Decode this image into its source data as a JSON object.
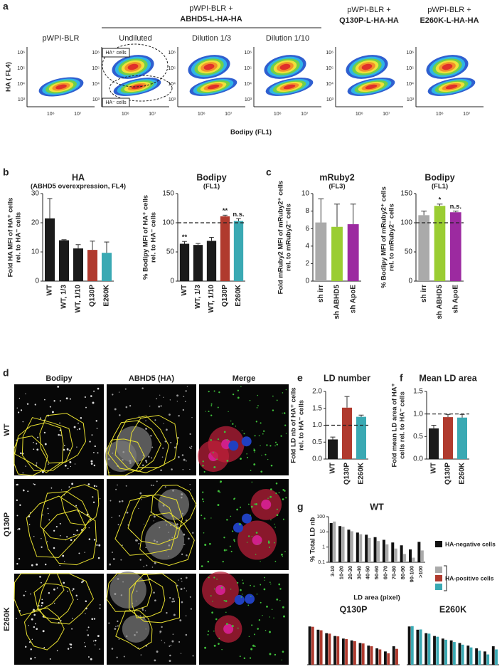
{
  "panel_a": {
    "label": "a",
    "groups": [
      {
        "line1": "pWPI-BLR +",
        "line2": "ABHD5-L-HA-HA"
      },
      {
        "line1": "pWPI-BLR +",
        "line2": "Q130P-L-HA-HA"
      },
      {
        "line1": "pWPI-BLR +",
        "line2": "E260K-L-HA-HA"
      }
    ],
    "plot_titles": [
      "pWPI-BLR",
      "Undiluted",
      "Dilution 1/3",
      "Dilution 1/10"
    ],
    "y_label": "HA ( FL4)",
    "x_label": "Bodipy (FL1)",
    "yticks": [
      "10⁶",
      "10⁵",
      "10⁴",
      "10³"
    ],
    "xticks": [
      "10⁶",
      "10⁷"
    ],
    "gates": [
      "HA⁺ cells",
      "HA⁻ cells"
    ]
  },
  "panel_d": {
    "label": "d",
    "columns": [
      "Bodipy",
      "ABHD5 (HA)",
      "Merge"
    ],
    "rows": [
      "WT",
      "Q130P",
      "E260K"
    ]
  },
  "chart_data": [
    {
      "panel": "b",
      "type": "bar",
      "title": "HA",
      "subtitle": "(ABHD5 overexpression, FL4)",
      "y_label": [
        "Fold HA MFI of HA⁺ cells",
        "rel. to HA⁻ cells"
      ],
      "categories": [
        "WT",
        "WT, 1/3",
        "WT, 1/10",
        "Q130P",
        "E260K"
      ],
      "values": [
        21.5,
        14,
        11.2,
        10.7,
        9.7
      ],
      "errors": [
        6.8,
        0.2,
        1.3,
        3,
        3.7
      ],
      "colors": [
        "#1a1a1a",
        "#1a1a1a",
        "#1a1a1a",
        "#b03a2e",
        "#3aa9b3"
      ],
      "ylim": [
        0,
        30
      ],
      "yticks": [
        0,
        10,
        20,
        30
      ]
    },
    {
      "type": "bar",
      "title": "Bodipy",
      "subtitle": "(FL1)",
      "y_label": [
        "% Bodipy MFI of HA⁺ cells",
        "rel. to HA⁻ cells"
      ],
      "categories": [
        "WT",
        "WT, 1/3",
        "WT, 1/10",
        "Q130P",
        "E260K"
      ],
      "values": [
        64,
        62,
        69,
        111,
        103
      ],
      "errors": [
        4,
        2.5,
        6,
        2,
        4
      ],
      "colors": [
        "#1a1a1a",
        "#1a1a1a",
        "#1a1a1a",
        "#b03a2e",
        "#3aa9b3"
      ],
      "ylim": [
        0,
        150
      ],
      "yticks": [
        0,
        50,
        100,
        150
      ],
      "reference_line": 100,
      "annotations": [
        {
          "category": "WT",
          "text": "**"
        },
        {
          "category": "Q130P",
          "text": "**"
        },
        {
          "category": "E260K",
          "text": "n.s."
        }
      ]
    },
    {
      "panel": "c",
      "type": "bar",
      "title": "mRuby2",
      "subtitle": "(FL3)",
      "y_label": [
        "Fold mRuby2 MFI of mRuby2⁺ cells",
        "rel. to mRuby2⁻ cells"
      ],
      "categories": [
        "sh irr",
        "sh ABHD5",
        "sh ApoE"
      ],
      "values": [
        6.7,
        6.2,
        6.5
      ],
      "errors": [
        2.7,
        2.6,
        2.3
      ],
      "colors": [
        "#aaaaaa",
        "#9acd32",
        "#9c2aa0"
      ],
      "ylim": [
        0,
        10
      ],
      "yticks": [
        0,
        2,
        4,
        6,
        8,
        10
      ]
    },
    {
      "type": "bar",
      "title": "Bodipy",
      "subtitle": "(FL1)",
      "y_label": [
        "% Bodipy MFI of  mRuby2⁺ cells",
        "rel. to mRuby2⁻ cells"
      ],
      "categories": [
        "sh irr",
        "sh ABHD5",
        "sh ApoE"
      ],
      "values": [
        113,
        129,
        118
      ],
      "errors": [
        7,
        3,
        2
      ],
      "colors": [
        "#aaaaaa",
        "#9acd32",
        "#9c2aa0"
      ],
      "ylim": [
        0,
        150
      ],
      "yticks": [
        0,
        50,
        100,
        150
      ],
      "reference_line": 100,
      "annotations": [
        {
          "category": "sh ABHD5",
          "text": "*"
        },
        {
          "category": "sh ApoE",
          "text": "n.s."
        }
      ]
    },
    {
      "panel": "e",
      "type": "bar",
      "title": "LD number",
      "y_label": [
        "Fold LD nb of HA⁺ cells",
        "rel. to HA⁻ cells"
      ],
      "categories": [
        "WT",
        "Q130P",
        "E260K"
      ],
      "values": [
        0.58,
        1.52,
        1.25
      ],
      "errors": [
        0.07,
        0.33,
        0.05
      ],
      "colors": [
        "#1a1a1a",
        "#b03a2e",
        "#3aa9b3"
      ],
      "ylim": [
        0,
        2
      ],
      "yticks": [
        {
          "value": 0,
          "label": "0.0"
        },
        0.5,
        {
          "value": 1,
          "label": "1.0"
        },
        1.5,
        {
          "value": 2,
          "label": "2.0"
        }
      ],
      "reference_line": 1
    },
    {
      "panel": "f",
      "type": "bar",
      "title": "Mean LD area",
      "y_label": [
        "Fold mean LD area of HA⁺",
        "cells rel. to HA⁻ cells"
      ],
      "categories": [
        "WT",
        "Q130P",
        "E260K"
      ],
      "values": [
        0.68,
        0.93,
        0.92
      ],
      "errors": [
        0.07,
        0.06,
        0.07
      ],
      "colors": [
        "#1a1a1a",
        "#b03a2e",
        "#3aa9b3"
      ],
      "ylim": [
        0,
        1.5
      ],
      "yticks": [
        {
          "value": 0,
          "label": "0.0"
        },
        0.5,
        {
          "value": 1,
          "label": "1.0"
        },
        1.5
      ],
      "reference_line": 1
    },
    {
      "panel": "g",
      "type": "bar",
      "title": "WT",
      "y_label": [
        "% Total LD nb"
      ],
      "x_label": "LD area (pixel)",
      "log_scale": true,
      "categories": [
        "3-10",
        "10-20",
        "20-30",
        "30-40",
        "40-50",
        "50-60",
        "60-70",
        "70-80",
        "80-90",
        "90-100",
        ">100"
      ],
      "series": [
        {
          "name": "HA-negative cells",
          "color": "#111111",
          "values": [
            38,
            24,
            14,
            9,
            6.5,
            4.5,
            3,
            2,
            1.3,
            0.7,
            2.2
          ]
        },
        {
          "name": "HA-positive cells",
          "color": "#aaaaaa",
          "values": [
            48,
            22,
            11,
            7,
            4,
            2.5,
            1.5,
            0.8,
            0.35,
            0.2,
            0.6
          ]
        }
      ],
      "ylim": [
        0.1,
        100
      ],
      "yticks": [
        0.1,
        1,
        10,
        100
      ]
    },
    {
      "type": "bar",
      "title": "Q130P",
      "log_scale": true,
      "series": [
        {
          "color": "#111111",
          "values": [
            40,
            24,
            14,
            9,
            6,
            4.5,
            3,
            2,
            1.3,
            0.8,
            1.8
          ]
        },
        {
          "color": "#b03a2e",
          "values": [
            38,
            22,
            13,
            8.5,
            5.5,
            4,
            2.8,
            1.8,
            1.1,
            0.6,
            1.2
          ]
        }
      ],
      "ylim": [
        0.1,
        100
      ]
    },
    {
      "type": "bar",
      "title": "E260K",
      "log_scale": true,
      "series": [
        {
          "color": "#111111",
          "values": [
            40,
            24,
            14,
            9,
            6,
            4.5,
            3,
            2,
            1.3,
            0.8,
            1.8
          ]
        },
        {
          "color": "#3aa9b3",
          "values": [
            42,
            25,
            13,
            8,
            5,
            3.5,
            2.3,
            1.5,
            0.9,
            0.5,
            1.1
          ]
        }
      ],
      "ylim": [
        0.1,
        100
      ]
    }
  ]
}
